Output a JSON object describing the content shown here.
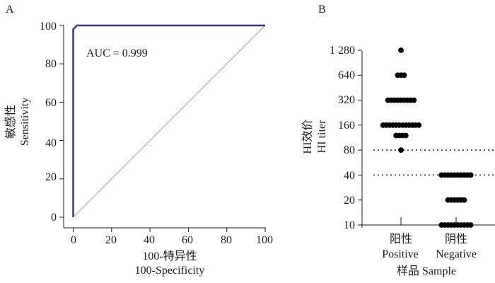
{
  "chart_data": [
    {
      "panel_label": "A",
      "type": "line",
      "series": [
        {
          "x": [
            0,
            0,
            2,
            100
          ],
          "y": [
            0,
            98,
            100,
            100
          ],
          "color": "#3d3670"
        }
      ],
      "reference_line": {
        "x": [
          0,
          100
        ],
        "y": [
          0,
          100
        ],
        "color": "#a0a0a0"
      },
      "annotation": "AUC = 0.999",
      "xlabel": [
        "100-特异性",
        "100-Specificity"
      ],
      "ylabel": [
        "敏感性",
        "Sensitivity"
      ],
      "xlim": [
        0,
        100
      ],
      "ylim": [
        0,
        100
      ],
      "xticks": [
        "0",
        "20",
        "40",
        "60",
        "80",
        "100"
      ],
      "yticks": [
        "0",
        "20",
        "40",
        "60",
        "80",
        "100"
      ],
      "grid": false
    },
    {
      "panel_label": "B",
      "type": "scatter",
      "yscale": "log2",
      "categories": [
        {
          "line1": "阳性",
          "line2": "Positive"
        },
        {
          "line1": "阴性",
          "line2": "Negative"
        }
      ],
      "series": [
        {
          "category": "Positive",
          "points": [
            {
              "y": 1280,
              "n": 1
            },
            {
              "y": 640,
              "n": 3
            },
            {
              "y": 320,
              "n": 9
            },
            {
              "y": 160,
              "n": 12
            },
            {
              "y": 120,
              "n": 4
            },
            {
              "y": 80,
              "n": 1
            }
          ]
        },
        {
          "category": "Negative",
          "points": [
            {
              "y": 40,
              "n": 10
            },
            {
              "y": 20,
              "n": 6
            },
            {
              "y": 10,
              "n": 10
            }
          ]
        }
      ],
      "thresholds": [
        80,
        40
      ],
      "ylabel": [
        "HI效价",
        "HI titer"
      ],
      "xlabel": "样品 Sample",
      "yticks": [
        "10",
        "20",
        "40",
        "80",
        "160",
        "320",
        "640",
        "1 280"
      ],
      "ylim": [
        10,
        1280
      ],
      "grid": false
    }
  ]
}
